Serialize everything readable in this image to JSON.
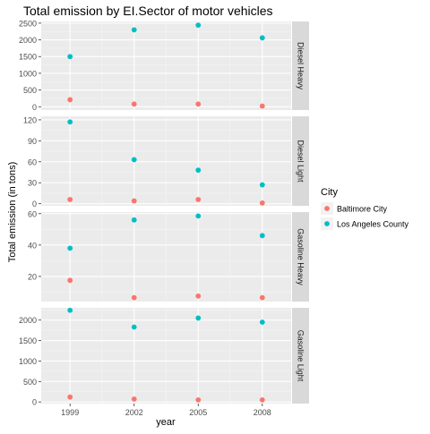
{
  "chart_data": {
    "type": "scatter",
    "title": "Total emission by EI.Sector of motor vehicles",
    "xlabel": "year",
    "ylabel": "Total emission (in tons)",
    "x": [
      1999,
      2002,
      2005,
      2008
    ],
    "x_tick_labels": [
      "1999",
      "2002",
      "2005",
      "2008"
    ],
    "grid": true,
    "facet_direction": "rows",
    "legend": {
      "title": "City",
      "placement": "right",
      "entries": [
        {
          "name": "Baltimore City",
          "color": "#F8766D"
        },
        {
          "name": "Los Angeles County",
          "color": "#00BFC4"
        }
      ]
    },
    "panels": [
      {
        "strip_label": "Diesel Heavy",
        "ylim": [
          -100,
          2550
        ],
        "yticks": [
          0,
          500,
          1000,
          1500,
          2000,
          2500
        ],
        "y_tick_labels": [
          "0",
          "500",
          "1000",
          "1500",
          "2000",
          "2500"
        ],
        "series": [
          {
            "name": "Baltimore City",
            "values": [
              210,
              80,
              80,
              20
            ]
          },
          {
            "name": "Los Angeles County",
            "values": [
              1500,
              2300,
              2440,
              2060
            ]
          }
        ]
      },
      {
        "strip_label": "Diesel Light",
        "ylim": [
          -3,
          125
        ],
        "yticks": [
          0,
          30,
          60,
          90,
          120
        ],
        "y_tick_labels": [
          "0",
          "30",
          "60",
          "90",
          "120"
        ],
        "series": [
          {
            "name": "Baltimore City",
            "values": [
              6,
              4,
              6,
              1
            ]
          },
          {
            "name": "Los Angeles County",
            "values": [
              117,
              63,
              48,
              27
            ]
          }
        ]
      },
      {
        "strip_label": "Gasoline Heavy",
        "ylim": [
          4,
          61
        ],
        "yticks": [
          20,
          40,
          60
        ],
        "y_tick_labels": [
          "20",
          "40",
          "60"
        ],
        "series": [
          {
            "name": "Baltimore City",
            "values": [
              17.5,
              6.5,
              7.5,
              6.5
            ]
          },
          {
            "name": "Los Angeles County",
            "values": [
              38,
              56,
              58.5,
              46
            ]
          }
        ]
      },
      {
        "strip_label": "Gasoline Light",
        "ylim": [
          -40,
          2300
        ],
        "yticks": [
          0,
          500,
          1000,
          1500,
          2000
        ],
        "y_tick_labels": [
          "0",
          "500",
          "1000",
          "1500",
          "2000"
        ],
        "series": [
          {
            "name": "Baltimore City",
            "values": [
              120,
              70,
              50,
              50
            ]
          },
          {
            "name": "Los Angeles County",
            "values": [
              2240,
              1830,
              2050,
              1950
            ]
          }
        ]
      }
    ]
  }
}
